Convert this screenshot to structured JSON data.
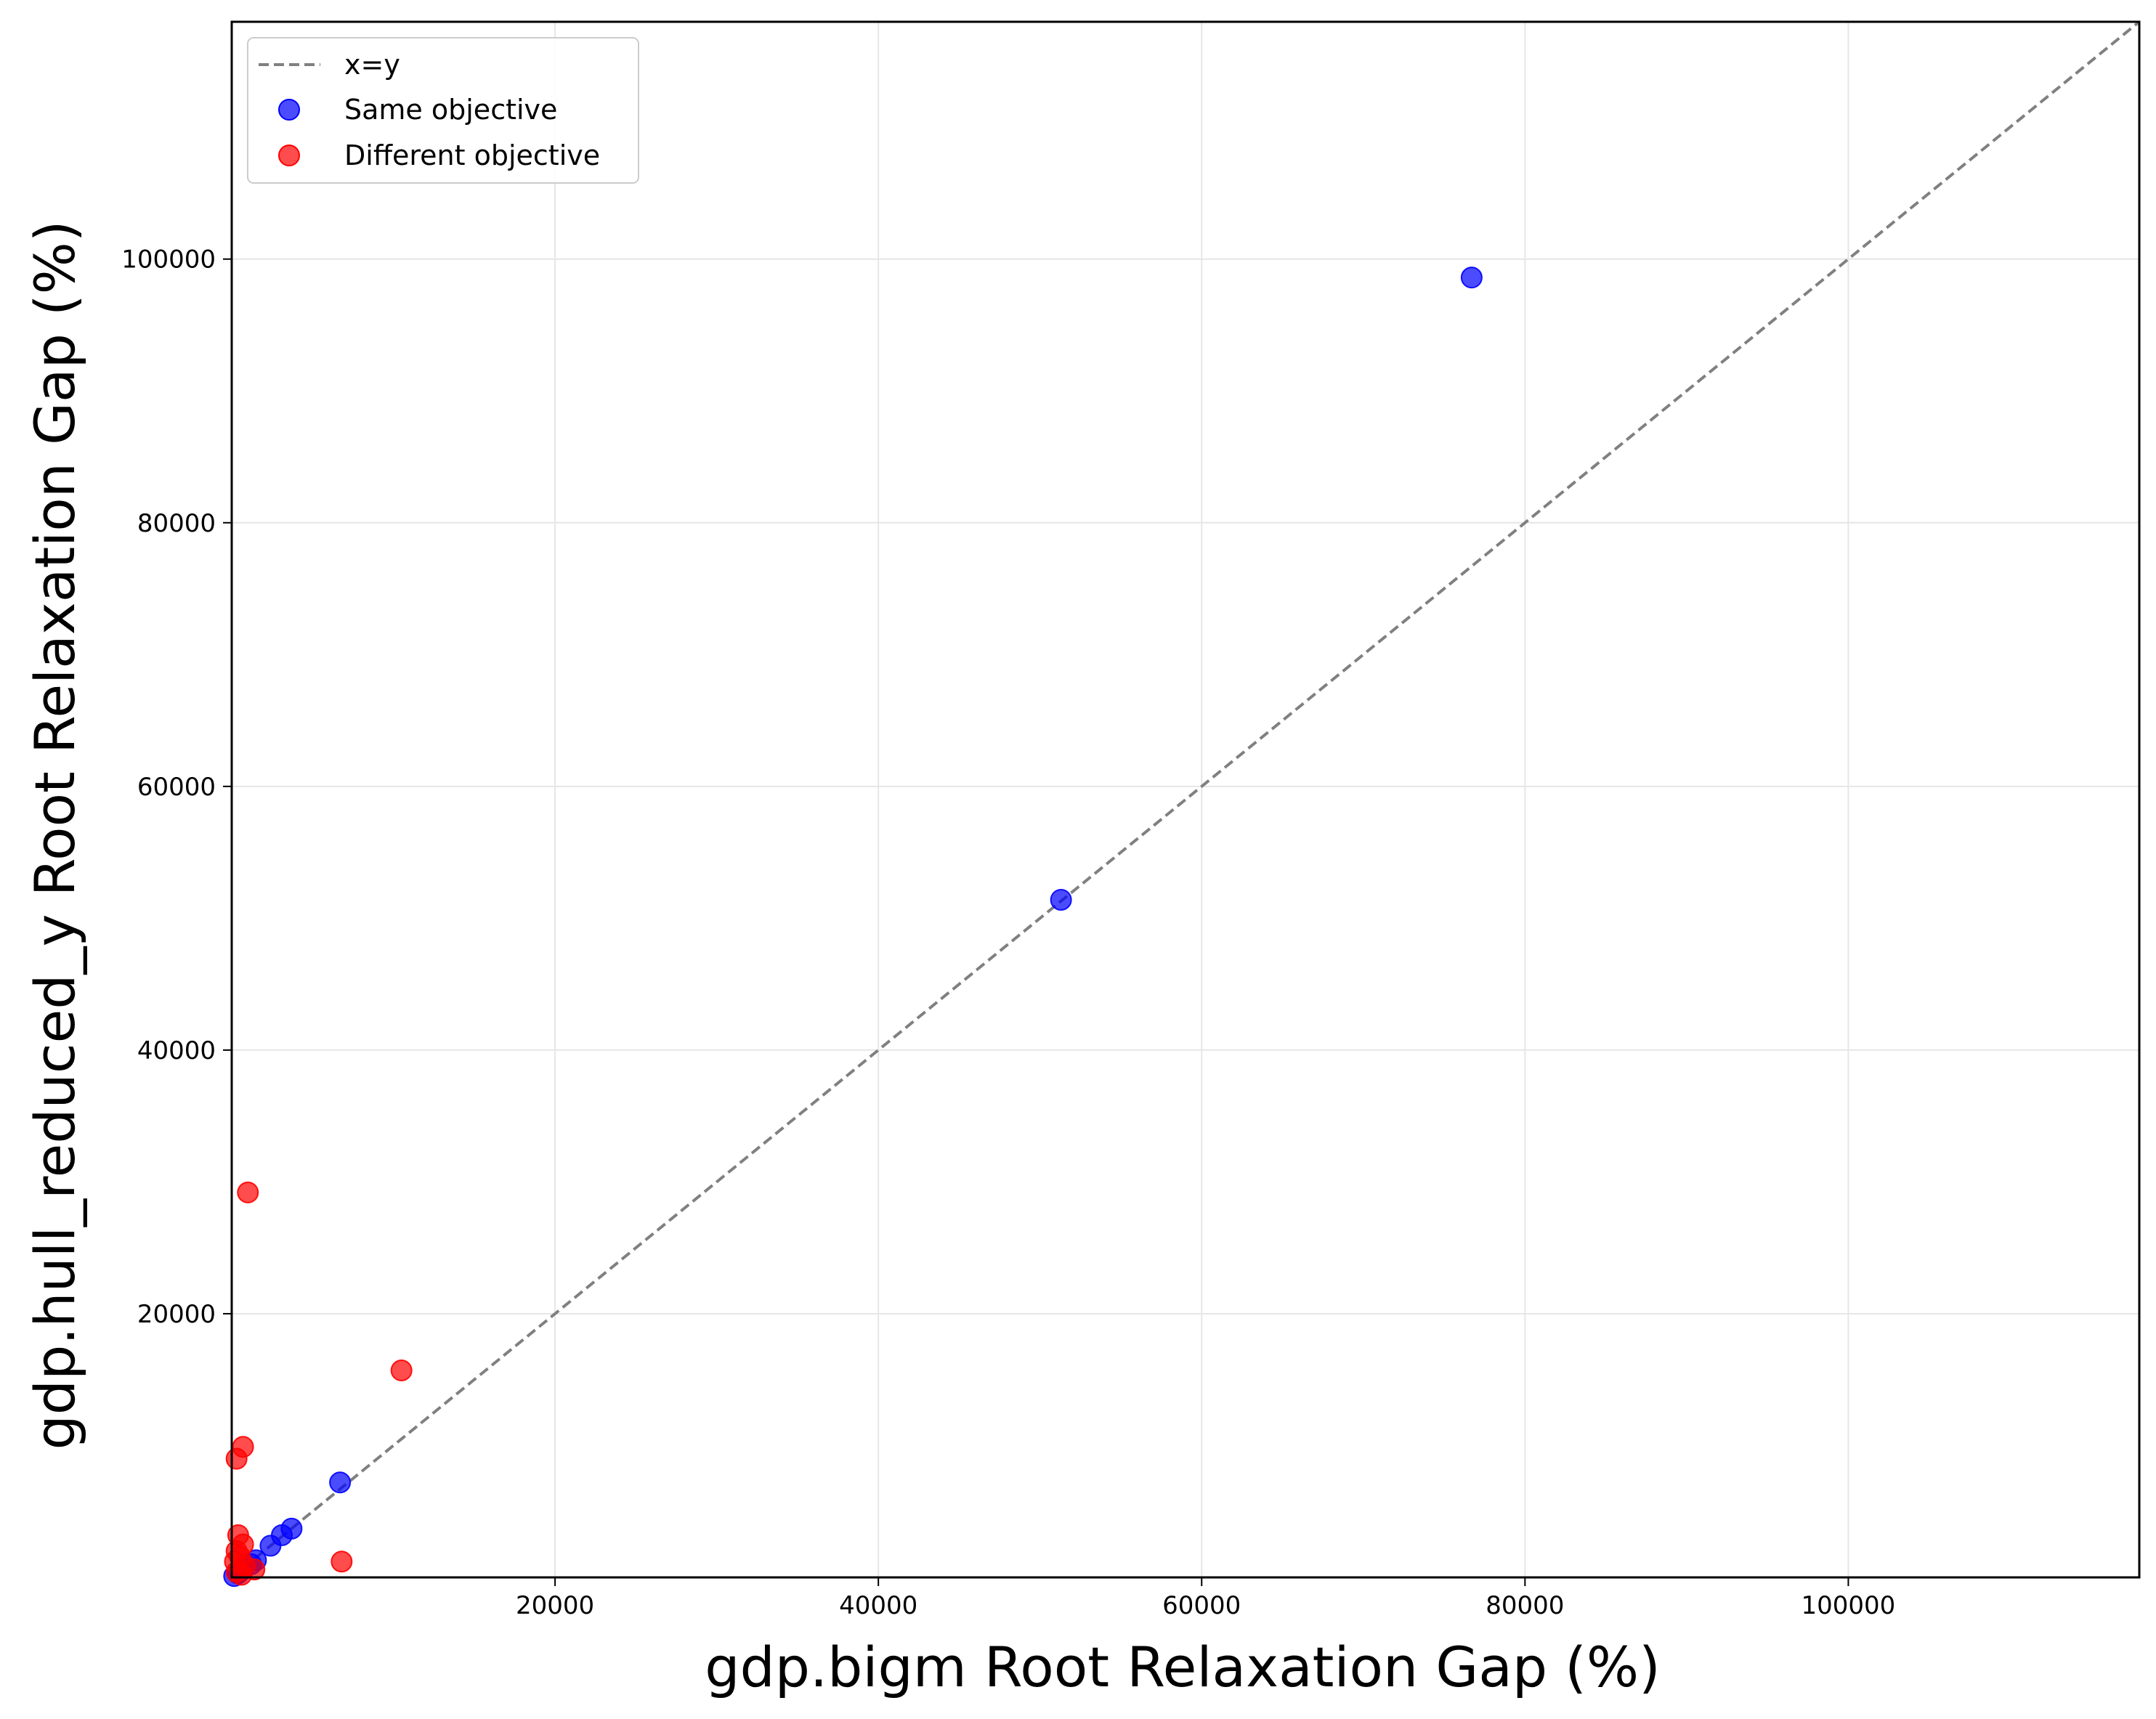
{
  "chart_data": {
    "type": "scatter",
    "xlabel": "gdp.bigm Root Relaxation Gap (%)",
    "ylabel": "gdp.hull_reduced_y Root Relaxation Gap (%)",
    "xlim": [
      0,
      118000
    ],
    "ylim": [
      0,
      118000
    ],
    "xticks": [
      20000,
      40000,
      60000,
      80000,
      100000
    ],
    "yticks": [
      20000,
      40000,
      60000,
      80000,
      100000
    ],
    "grid": true,
    "legend_position": "top-left",
    "reference_line": {
      "name": "x=y",
      "style": "dashed",
      "color": "#808080"
    },
    "series": [
      {
        "name": "Same objective",
        "color": "#0000ff",
        "points": [
          {
            "x": 76700,
            "y": 98600
          },
          {
            "x": 51300,
            "y": 51400
          },
          {
            "x": 6700,
            "y": 7200
          },
          {
            "x": 3700,
            "y": 3700
          },
          {
            "x": 3100,
            "y": 3200
          },
          {
            "x": 2400,
            "y": 2400
          },
          {
            "x": 1500,
            "y": 1300
          },
          {
            "x": 1200,
            "y": 1000
          },
          {
            "x": 700,
            "y": 600
          },
          {
            "x": 400,
            "y": 300
          },
          {
            "x": 150,
            "y": 100
          }
        ]
      },
      {
        "name": "Different objective",
        "color": "#ff0000",
        "points": [
          {
            "x": 1000,
            "y": 29200
          },
          {
            "x": 10500,
            "y": 15700
          },
          {
            "x": 700,
            "y": 9900
          },
          {
            "x": 300,
            "y": 9000
          },
          {
            "x": 6800,
            "y": 1200
          },
          {
            "x": 400,
            "y": 3200
          },
          {
            "x": 700,
            "y": 2500
          },
          {
            "x": 300,
            "y": 2000
          },
          {
            "x": 500,
            "y": 1600
          },
          {
            "x": 200,
            "y": 1200
          },
          {
            "x": 800,
            "y": 900
          },
          {
            "x": 1400,
            "y": 600
          },
          {
            "x": 300,
            "y": 400
          },
          {
            "x": 600,
            "y": 200
          }
        ]
      }
    ]
  }
}
